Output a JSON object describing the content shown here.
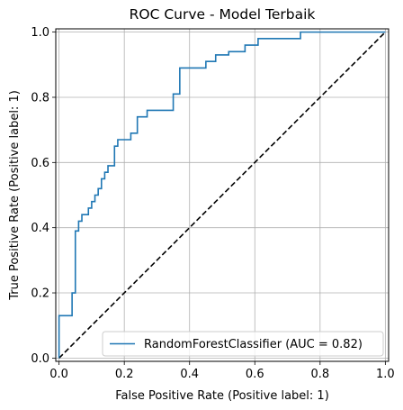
{
  "chart_data": {
    "type": "line",
    "title": "ROC Curve - Model Terbaik",
    "xlabel": "False Positive Rate (Positive label: 1)",
    "ylabel": "True Positive Rate (Positive label: 1)",
    "xlim": [
      -0.01,
      1.01
    ],
    "ylim": [
      -0.01,
      1.01
    ],
    "xticks": [
      0.0,
      0.2,
      0.4,
      0.6,
      0.8,
      1.0
    ],
    "yticks": [
      0.0,
      0.2,
      0.4,
      0.6,
      0.8,
      1.0
    ],
    "xtick_labels": [
      "0.0",
      "0.2",
      "0.4",
      "0.6",
      "0.8",
      "1.0"
    ],
    "ytick_labels": [
      "0.0",
      "0.2",
      "0.4",
      "0.6",
      "0.8",
      "1.0"
    ],
    "grid": true,
    "legend": {
      "position": "lower-right",
      "entry": "RandomForestClassifier (AUC = 0.82)"
    },
    "colors": {
      "roc": "#1f77b4",
      "chance": "#000000",
      "grid": "#b0b0b0"
    },
    "series": [
      {
        "name": "RandomForestClassifier (AUC = 0.82)",
        "style": "step",
        "points": [
          [
            0.0,
            0.0
          ],
          [
            0.0,
            0.13
          ],
          [
            0.04,
            0.13
          ],
          [
            0.04,
            0.2
          ],
          [
            0.05,
            0.2
          ],
          [
            0.05,
            0.39
          ],
          [
            0.06,
            0.39
          ],
          [
            0.06,
            0.42
          ],
          [
            0.07,
            0.42
          ],
          [
            0.07,
            0.44
          ],
          [
            0.09,
            0.44
          ],
          [
            0.09,
            0.46
          ],
          [
            0.1,
            0.46
          ],
          [
            0.1,
            0.48
          ],
          [
            0.11,
            0.48
          ],
          [
            0.11,
            0.5
          ],
          [
            0.12,
            0.5
          ],
          [
            0.12,
            0.52
          ],
          [
            0.13,
            0.52
          ],
          [
            0.13,
            0.55
          ],
          [
            0.14,
            0.55
          ],
          [
            0.14,
            0.57
          ],
          [
            0.15,
            0.57
          ],
          [
            0.15,
            0.59
          ],
          [
            0.17,
            0.59
          ],
          [
            0.17,
            0.65
          ],
          [
            0.18,
            0.65
          ],
          [
            0.18,
            0.67
          ],
          [
            0.22,
            0.67
          ],
          [
            0.22,
            0.69
          ],
          [
            0.24,
            0.69
          ],
          [
            0.24,
            0.74
          ],
          [
            0.27,
            0.74
          ],
          [
            0.27,
            0.76
          ],
          [
            0.35,
            0.76
          ],
          [
            0.35,
            0.81
          ],
          [
            0.37,
            0.81
          ],
          [
            0.37,
            0.89
          ],
          [
            0.45,
            0.89
          ],
          [
            0.45,
            0.91
          ],
          [
            0.48,
            0.91
          ],
          [
            0.48,
            0.93
          ],
          [
            0.52,
            0.93
          ],
          [
            0.52,
            0.94
          ],
          [
            0.57,
            0.94
          ],
          [
            0.57,
            0.96
          ],
          [
            0.61,
            0.96
          ],
          [
            0.61,
            0.98
          ],
          [
            0.74,
            0.98
          ],
          [
            0.74,
            1.0
          ],
          [
            1.0,
            1.0
          ]
        ]
      },
      {
        "name": "chance",
        "style": "dashed",
        "points": [
          [
            0.0,
            0.0
          ],
          [
            1.0,
            1.0
          ]
        ]
      }
    ]
  }
}
